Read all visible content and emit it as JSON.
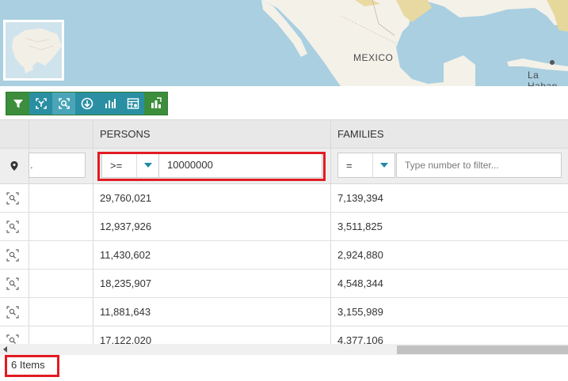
{
  "map": {
    "labels": {
      "mexico": "MEXICO",
      "havana": "La Haban"
    }
  },
  "toolbar": {
    "buttons": [
      {
        "icon": "filter-icon"
      },
      {
        "icon": "zoom-to-selection-icon"
      },
      {
        "icon": "zoom-to-feature-icon"
      },
      {
        "icon": "download-icon"
      },
      {
        "icon": "bar-chart-icon"
      },
      {
        "icon": "table-options-icon"
      },
      {
        "icon": "chart-widget-icon"
      }
    ]
  },
  "grid": {
    "columns": [
      {
        "key": "persons",
        "label": "PERSONS"
      },
      {
        "key": "families",
        "label": "FAMILIES"
      }
    ],
    "filters": {
      "persons": {
        "operator": ">=",
        "value": "10000000"
      },
      "families": {
        "operator": "=",
        "placeholder": "Type number to filter..."
      }
    },
    "rows": [
      {
        "persons": "29,760,021",
        "families": "7,139,394"
      },
      {
        "persons": "12,937,926",
        "families": "3,511,825"
      },
      {
        "persons": "11,430,602",
        "families": "2,924,880"
      },
      {
        "persons": "18,235,907",
        "families": "4,548,344"
      },
      {
        "persons": "11,881,643",
        "families": "3,155,989"
      },
      {
        "persons": "17,122,020",
        "families": "4,377,106"
      }
    ]
  },
  "footer": {
    "item_count": "6 Items"
  },
  "colors": {
    "accent_green": "#3c8d3c",
    "accent_teal": "#2a8fa3",
    "highlight_red": "#e21b23",
    "caret_teal": "#1f8aa6"
  }
}
